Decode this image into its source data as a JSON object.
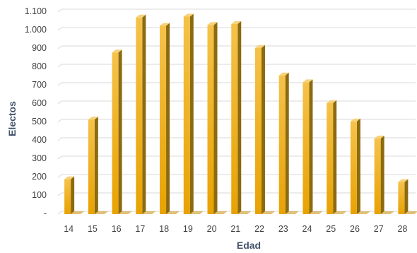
{
  "chart_data": {
    "type": "bar",
    "xlabel": "Edad",
    "ylabel": "Electos",
    "categories": [
      "14",
      "15",
      "16",
      "17",
      "18",
      "19",
      "20",
      "21",
      "22",
      "23",
      "24",
      "25",
      "26",
      "27",
      "28"
    ],
    "series": [
      {
        "values": [
          190,
          515,
          880,
          1070,
          1025,
          1075,
          1030,
          1035,
          905,
          755,
          718,
          605,
          505,
          412,
          175
        ]
      }
    ],
    "ylim": [
      0,
      1100
    ],
    "yticks": [
      0,
      100,
      200,
      300,
      400,
      500,
      600,
      700,
      800,
      900,
      1000,
      1100
    ],
    "ytick_labels": [
      "-",
      "100",
      "200",
      "300",
      "400",
      "500",
      "600",
      "700",
      "800",
      "900",
      "1.000",
      "1.100"
    ],
    "grid": true,
    "legend": "none",
    "colors": {
      "bar_front_top": "#f5c24a",
      "bar_front_bottom": "#e8a202",
      "bar_side": "#8c6a10",
      "bar_top": "#f8d27a",
      "grid": "#d9d9d9",
      "axis_title": "#44546a"
    }
  }
}
